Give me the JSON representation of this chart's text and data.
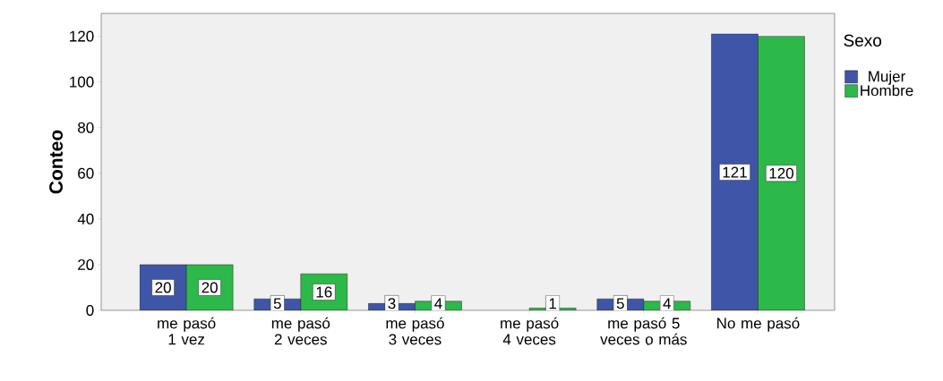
{
  "chart_data": {
    "type": "bar",
    "ylabel": "Conteo",
    "legend_title": "Sexo",
    "legend": "right",
    "data_labels": true,
    "grid": false,
    "categories": [
      "me pasó 1 vez",
      "me pasó 2 veces",
      "me pasó 3 veces",
      "me pasó 4 veces",
      "me pasó 5 veces o más",
      "No me pasó"
    ],
    "ylim": [
      0,
      130
    ],
    "yticks": [
      0,
      20,
      40,
      60,
      80,
      100,
      120
    ],
    "series": [
      {
        "name": "Mujer",
        "color": "#3f56a8",
        "values": [
          20,
          5,
          3,
          null,
          5,
          121
        ]
      },
      {
        "name": "Hombre",
        "color": "#2db84a",
        "values": [
          20,
          16,
          4,
          1,
          4,
          120
        ]
      }
    ]
  }
}
